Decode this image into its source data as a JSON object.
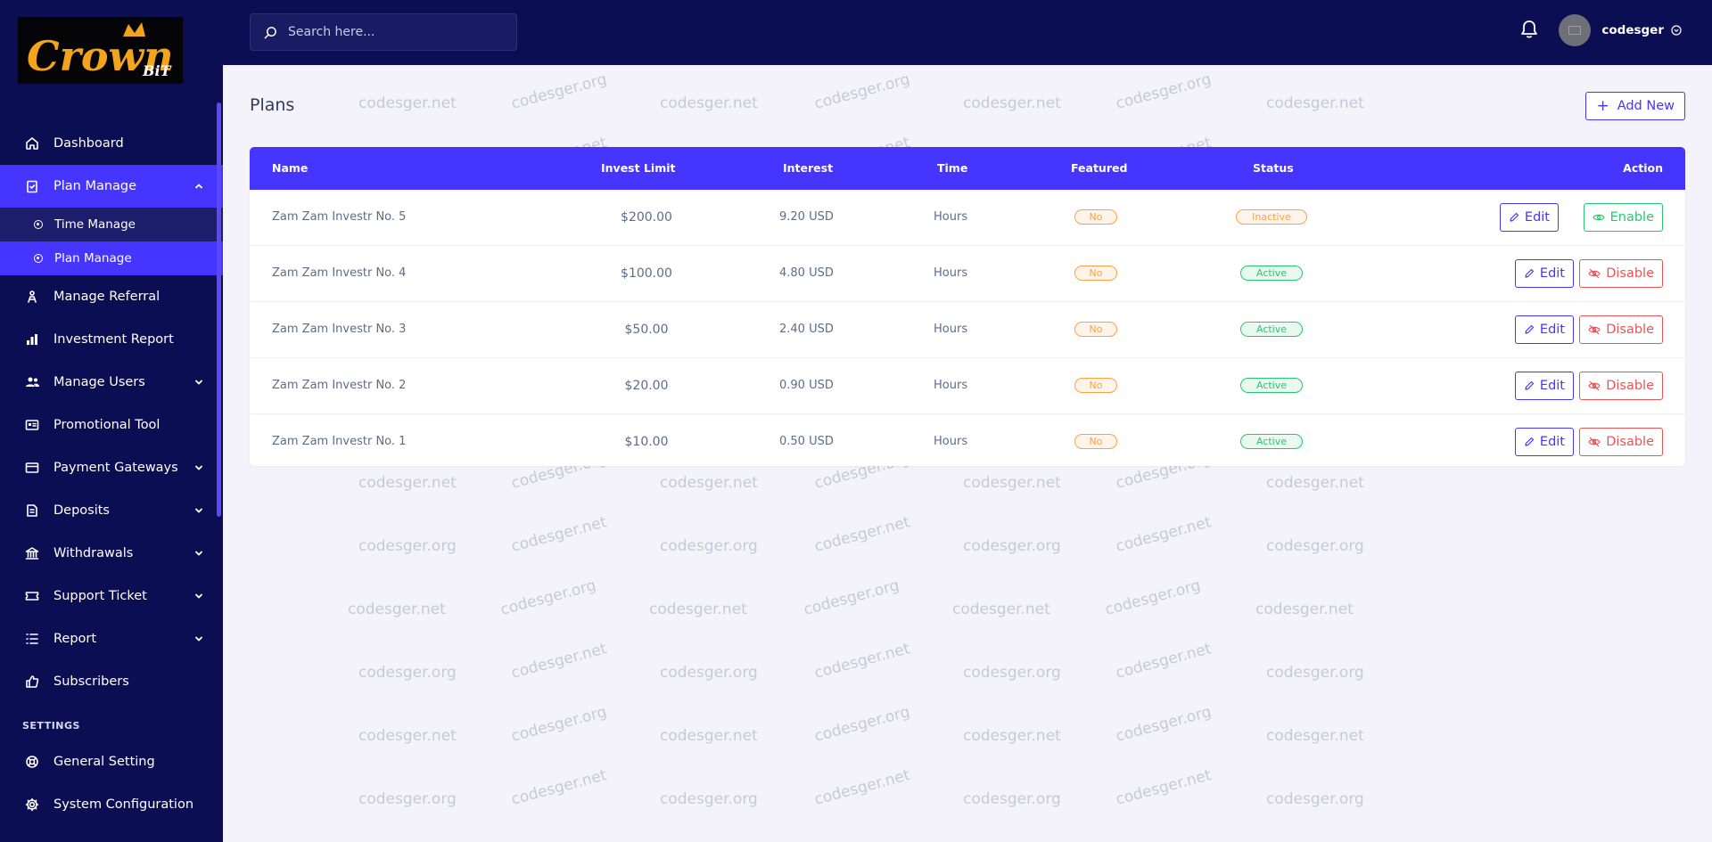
{
  "brand": {
    "logo_text": "Crown",
    "logo_sub": "BiT"
  },
  "search": {
    "placeholder": "Search here..."
  },
  "user": {
    "name": "codesger"
  },
  "sidebar": {
    "items": [
      {
        "label": "Dashboard",
        "icon": "home-icon"
      },
      {
        "label": "Plan Manage",
        "icon": "clipboard-icon",
        "expanded": true,
        "children": [
          {
            "label": "Time Manage"
          },
          {
            "label": "Plan Manage",
            "active": true
          }
        ]
      },
      {
        "label": "Manage Referral",
        "icon": "referral-icon"
      },
      {
        "label": "Investment Report",
        "icon": "chart-bar-icon"
      },
      {
        "label": "Manage Users",
        "icon": "users-icon",
        "has_children": true
      },
      {
        "label": "Promotional Tool",
        "icon": "id-card-icon"
      },
      {
        "label": "Payment Gateways",
        "icon": "credit-card-icon",
        "has_children": true
      },
      {
        "label": "Deposits",
        "icon": "deposit-icon",
        "has_children": true
      },
      {
        "label": "Withdrawals",
        "icon": "bank-icon",
        "has_children": true
      },
      {
        "label": "Support Ticket",
        "icon": "ticket-icon",
        "has_children": true
      },
      {
        "label": "Report",
        "icon": "list-icon",
        "has_children": true
      },
      {
        "label": "Subscribers",
        "icon": "thumbs-up-icon"
      }
    ],
    "settings_label": "SETTINGS",
    "settings_items": [
      {
        "label": "General Setting",
        "icon": "life-ring-icon"
      },
      {
        "label": "System Configuration",
        "icon": "gear-icon"
      }
    ]
  },
  "page": {
    "title": "Plans",
    "add_new_label": "Add New"
  },
  "table": {
    "headers": {
      "name": "Name",
      "invest_limit": "Invest Limit",
      "interest": "Interest",
      "time": "Time",
      "featured": "Featured",
      "status": "Status",
      "action": "Action"
    },
    "rows": [
      {
        "name": "Zam Zam Investr No. 5",
        "invest_limit": "$200.00",
        "interest": "9.20 USD",
        "time": "Hours",
        "featured": "No",
        "status": "Inactive",
        "status_type": "warn",
        "edit": "Edit",
        "toggle": "Enable",
        "toggle_type": "en"
      },
      {
        "name": "Zam Zam Investr No. 4",
        "invest_limit": "$100.00",
        "interest": "4.80 USD",
        "time": "Hours",
        "featured": "No",
        "status": "Active",
        "status_type": "succ",
        "edit": "Edit",
        "toggle": "Disable",
        "toggle_type": "dis"
      },
      {
        "name": "Zam Zam Investr No. 3",
        "invest_limit": "$50.00",
        "interest": "2.40 USD",
        "time": "Hours",
        "featured": "No",
        "status": "Active",
        "status_type": "succ",
        "edit": "Edit",
        "toggle": "Disable",
        "toggle_type": "dis"
      },
      {
        "name": "Zam Zam Investr No. 2",
        "invest_limit": "$20.00",
        "interest": "0.90 USD",
        "time": "Hours",
        "featured": "No",
        "status": "Active",
        "status_type": "succ",
        "edit": "Edit",
        "toggle": "Disable",
        "toggle_type": "dis"
      },
      {
        "name": "Zam Zam Investr No. 1",
        "invest_limit": "$10.00",
        "interest": "0.50 USD",
        "time": "Hours",
        "featured": "No",
        "status": "Active",
        "status_type": "succ",
        "edit": "Edit",
        "toggle": "Disable",
        "toggle_type": "dis"
      }
    ]
  },
  "watermark": {
    "texts": [
      "codesger.net",
      "codesger.org"
    ]
  },
  "colors": {
    "sidebar_bg": "#0b0e52",
    "primary": "#4634ff",
    "success": "#28c76f",
    "warning": "#ff9f43",
    "danger": "#ea5455"
  }
}
